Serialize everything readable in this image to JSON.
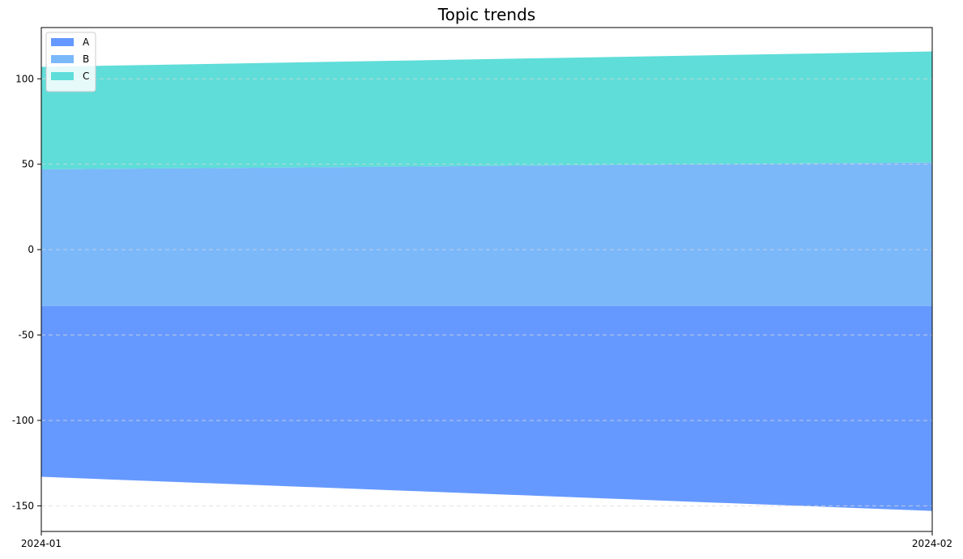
{
  "chart_data": {
    "type": "area",
    "stacked": true,
    "title": "Topic trends",
    "xlabel": "",
    "ylabel": "",
    "x": [
      "2024-01",
      "2024-02"
    ],
    "series": [
      {
        "name": "A",
        "color": "#6699ff",
        "lower": [
          -133,
          -153
        ],
        "upper": [
          -33,
          -33
        ]
      },
      {
        "name": "B",
        "color": "#7ab8fa",
        "lower": [
          -33,
          -33
        ],
        "upper": [
          47,
          51
        ]
      },
      {
        "name": "C",
        "color": "#5fddd9",
        "lower": [
          47,
          51
        ],
        "upper": [
          107,
          116
        ]
      }
    ],
    "ylim": [
      -165,
      130
    ],
    "yticks": [
      100,
      50,
      0,
      -50,
      -100,
      -150
    ],
    "ytick_labels": [
      "100",
      "50",
      "0",
      "-50",
      "-100",
      "-150"
    ],
    "grid": "horizontal dashed",
    "legend_position": "upper-left"
  }
}
